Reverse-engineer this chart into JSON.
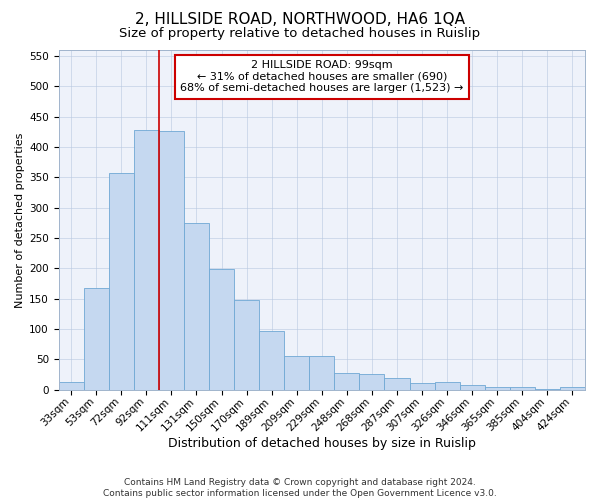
{
  "title": "2, HILLSIDE ROAD, NORTHWOOD, HA6 1QA",
  "subtitle": "Size of property relative to detached houses in Ruislip",
  "xlabel": "Distribution of detached houses by size in Ruislip",
  "ylabel": "Number of detached properties",
  "categories": [
    "33sqm",
    "53sqm",
    "72sqm",
    "92sqm",
    "111sqm",
    "131sqm",
    "150sqm",
    "170sqm",
    "189sqm",
    "209sqm",
    "229sqm",
    "248sqm",
    "268sqm",
    "287sqm",
    "307sqm",
    "326sqm",
    "346sqm",
    "365sqm",
    "385sqm",
    "404sqm",
    "424sqm"
  ],
  "values": [
    13,
    168,
    357,
    428,
    427,
    275,
    199,
    148,
    96,
    55,
    55,
    27,
    26,
    20,
    11,
    12,
    7,
    5,
    4,
    1,
    4
  ],
  "bar_color": "#c5d8f0",
  "bar_edge_color": "#6fa8d4",
  "vline_color": "#cc0000",
  "vline_index": 3.5,
  "ylim": [
    0,
    560
  ],
  "yticks": [
    0,
    50,
    100,
    150,
    200,
    250,
    300,
    350,
    400,
    450,
    500,
    550
  ],
  "annotation_line1": "2 HILLSIDE ROAD: 99sqm",
  "annotation_line2": "← 31% of detached houses are smaller (690)",
  "annotation_line3": "68% of semi-detached houses are larger (1,523) →",
  "annotation_box_color": "#ffffff",
  "annotation_box_edge": "#cc0000",
  "footer_line1": "Contains HM Land Registry data © Crown copyright and database right 2024.",
  "footer_line2": "Contains public sector information licensed under the Open Government Licence v3.0.",
  "bg_color": "#eef2fa",
  "title_fontsize": 11,
  "subtitle_fontsize": 9.5,
  "xlabel_fontsize": 9,
  "ylabel_fontsize": 8,
  "tick_fontsize": 7.5,
  "annotation_fontsize": 8,
  "footer_fontsize": 6.5
}
